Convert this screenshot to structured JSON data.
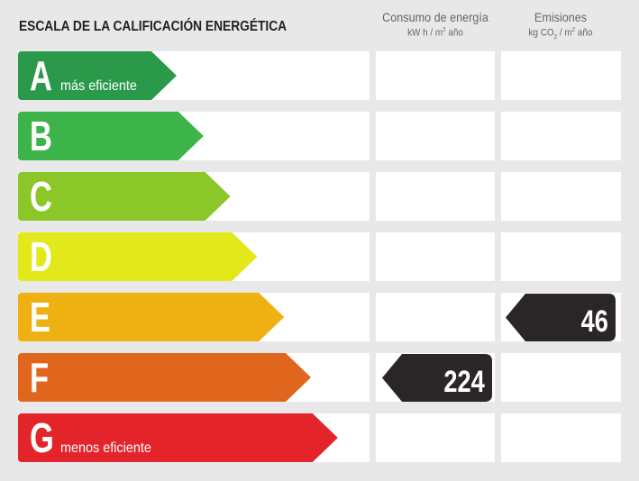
{
  "title": "ESCALA DE LA CALIFICACIÓN ENERGÉTICA",
  "columns": {
    "consumo": {
      "label": "Consumo de energía",
      "unit_prefix": "kW h / m",
      "unit_sup": "2",
      "unit_suffix": " año"
    },
    "emisiones": {
      "label": "Emisiones",
      "unit_prefix": "kg CO",
      "unit_sub": "2",
      "unit_mid": " / m",
      "unit_sup": "2",
      "unit_suffix": " año"
    }
  },
  "ratings": [
    {
      "letter": "A",
      "caption": "más eficiente",
      "color": "#2a9a4a"
    },
    {
      "letter": "B",
      "caption": "",
      "color": "#3db44a"
    },
    {
      "letter": "C",
      "caption": "",
      "color": "#8cc72a"
    },
    {
      "letter": "D",
      "caption": "",
      "color": "#e3e81a"
    },
    {
      "letter": "E",
      "caption": "",
      "color": "#efb012"
    },
    {
      "letter": "F",
      "caption": "",
      "color": "#e0661e"
    },
    {
      "letter": "G",
      "caption": "menos eficiente",
      "color": "#e3252b"
    }
  ],
  "consumo_value": {
    "value": "224",
    "rating": "F"
  },
  "emisiones_value": {
    "value": "46",
    "rating": "E"
  },
  "badge_color": "#2a2627"
}
